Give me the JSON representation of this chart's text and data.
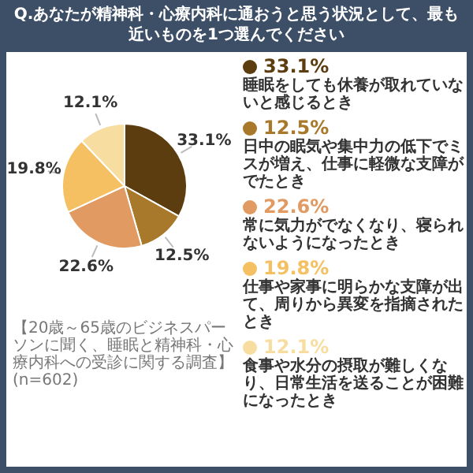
{
  "chart_data": {
    "type": "pie",
    "title": "Q.あなたが精神科・心療内科に通おうと思う状況として、最も近いものを1つ選んでください",
    "categories": [
      "睡眠をしても休養が取れていないと感じるとき",
      "日中の眠気や集中力の低下でミスが増え、仕事に軽微な支障がでたとき",
      "常に気力がでなくなり、寝られないようになったとき",
      "仕事や家事に明らかな支障が出て、周りから異変を指摘されたとき",
      "食事や水分の摂取が難しくなり、日常生活を送ることが困難になったとき"
    ],
    "values": [
      33.1,
      12.5,
      22.6,
      19.8,
      12.1
    ],
    "value_labels": [
      "33.1%",
      "12.5%",
      "22.6%",
      "19.8%",
      "12.1%"
    ],
    "colors": [
      "#5c3d10",
      "#a8792a",
      "#e09a62",
      "#f5c062",
      "#f8dda0"
    ],
    "legend": "right",
    "annotations": [
      "【20歳～65歳のビジネスパーソンに聞く、睡眠と精神科・心療内科への受診に関する調査】(n=602)"
    ]
  }
}
